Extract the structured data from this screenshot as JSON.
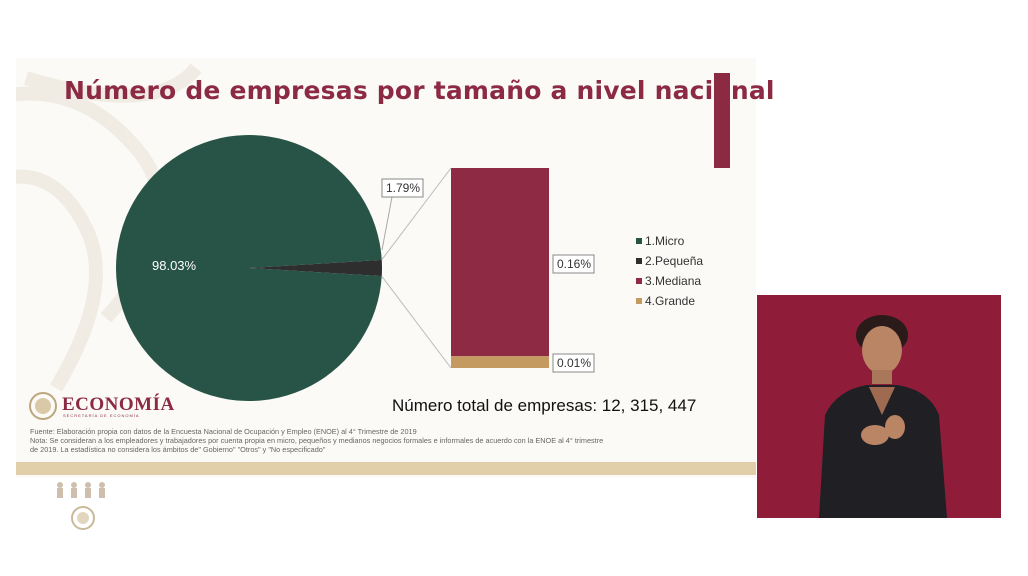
{
  "slide": {
    "title": "Número de empresas por tamaño a nivel nacional",
    "total_text": "Número total de empresas: 12, 315, 447",
    "notes": [
      "Fuente: Elaboración propia con datos de la Encuesta Nacional de Ocupación y Empleo (ENOE) al 4° Trimestre de 2019",
      "Nota: Se consideran a los empleadores y trabajadores por cuenta propia en micro, pequeños y medianos negocios formales e informales de acuerdo con la ENOE al 4° trimestre",
      "de 2019. La estadística no considera los ámbitos de\" Gobierno\" \"Otros\" y \"No especificado\""
    ],
    "logo": {
      "name": "ECONOMÍA",
      "subtitle": "SECRETARÍA DE ECONOMÍA"
    },
    "colors": {
      "accent": "#8c2a44",
      "micro": "#275446",
      "pequena": "#2e2e2e",
      "mediana": "#8f2a45",
      "grande": "#c59a61",
      "stripe": "#e1cfaa"
    }
  },
  "chart_data": {
    "type": "pie",
    "subtype": "bar-of-pie",
    "legend_position": "right",
    "slices": [
      {
        "name": "1.Micro",
        "value": 98.03,
        "label": "98.03%"
      },
      {
        "name": "2.Pequeña",
        "value": 1.79,
        "label": "1.79%"
      },
      {
        "name": "3.Mediana",
        "value": 0.16,
        "label": "0.16%"
      },
      {
        "name": "4.Grande",
        "value": 0.01,
        "label": "0.01%"
      }
    ],
    "bar_breakout": [
      "3.Mediana",
      "4.Grande"
    ]
  },
  "interpreter": {
    "present": true
  }
}
